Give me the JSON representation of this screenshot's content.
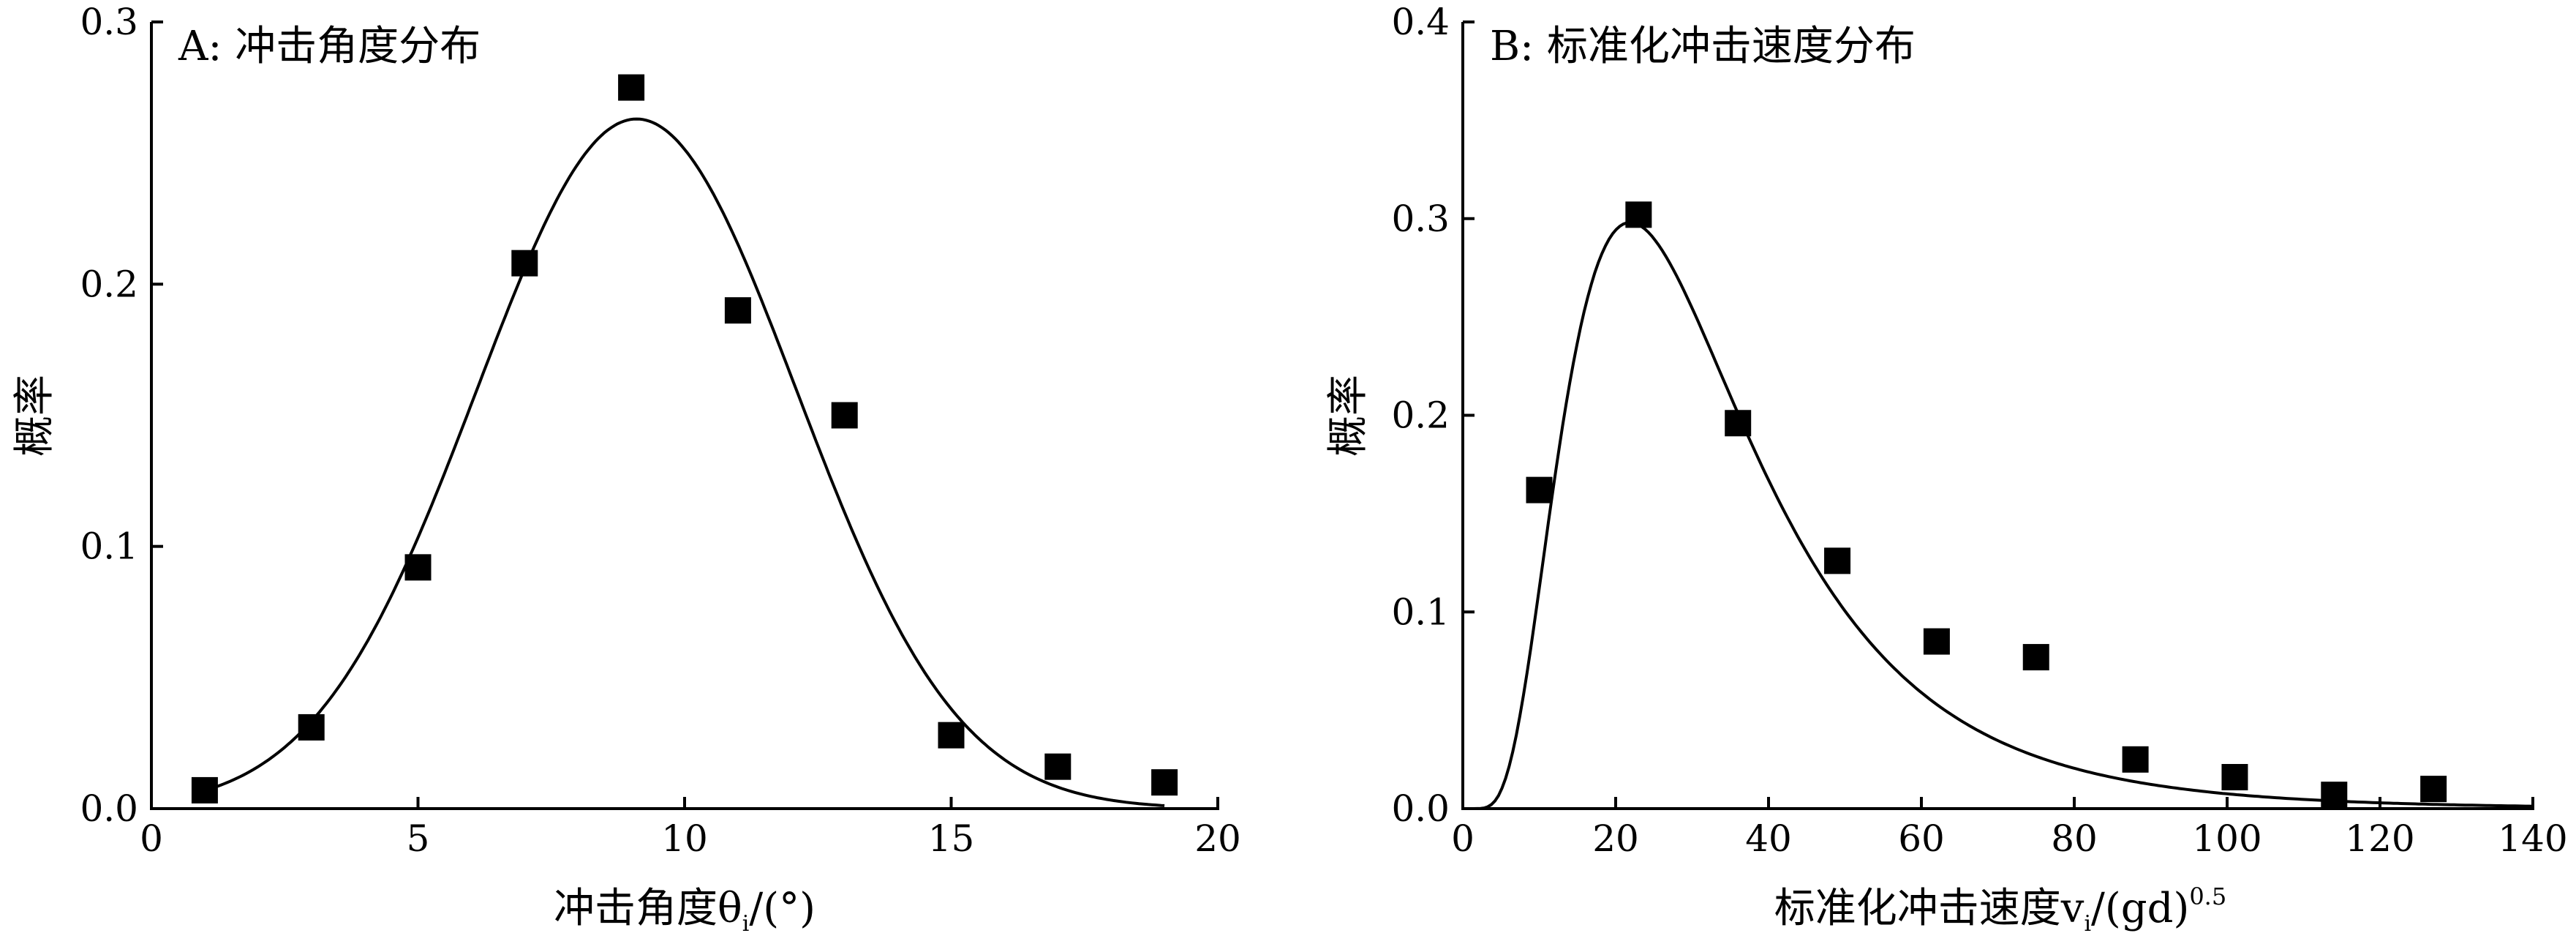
{
  "chart_data": [
    {
      "type": "scatter",
      "title": "A: 冲击角度分布",
      "xlabel": "冲击角度θ",
      "xlabel_sub": "i",
      "xlabel_tail": "/(°)",
      "ylabel": "概率",
      "xlim": [
        0,
        20
      ],
      "ylim": [
        0,
        0.3
      ],
      "xticks": [
        0,
        5,
        10,
        15,
        20
      ],
      "xtick_labels": [
        "0",
        "5",
        "10",
        "15",
        "20"
      ],
      "yticks": [
        0,
        0.1,
        0.2,
        0.3
      ],
      "ytick_labels": [
        "0.0",
        "0.1",
        "0.2",
        "0.3"
      ],
      "grid": false,
      "series": [
        {
          "marker": "square",
          "color": "#000000",
          "x": [
            1,
            3,
            5,
            7,
            9,
            11,
            13,
            15,
            17,
            19
          ],
          "y": [
            0.007,
            0.031,
            0.092,
            0.208,
            0.275,
            0.19,
            0.15,
            0.028,
            0.016,
            0.01
          ]
        }
      ],
      "fit": {
        "kind": "gaussian",
        "amplitude": 0.263,
        "mean": 9.1,
        "sigma": 3.0,
        "x_range": [
          1,
          19
        ],
        "color": "#000000"
      }
    },
    {
      "type": "scatter",
      "title": "B: 标准化冲击速度分布",
      "xlabel": "标准化冲击速度v",
      "xlabel_sub": "i",
      "xlabel_tail": "/(gd)",
      "xlabel_sup": "0.5",
      "ylabel": "概率",
      "xlim": [
        0,
        140
      ],
      "ylim": [
        0,
        0.4
      ],
      "xticks": [
        0,
        20,
        40,
        60,
        80,
        100,
        120,
        140
      ],
      "xtick_labels": [
        "0",
        "20",
        "40",
        "60",
        "80",
        "100",
        "120",
        "140"
      ],
      "yticks": [
        0,
        0.1,
        0.2,
        0.3,
        0.4
      ],
      "ytick_labels": [
        "0.0",
        "0.1",
        "0.2",
        "0.3",
        "0.4"
      ],
      "grid": false,
      "series": [
        {
          "marker": "square",
          "color": "#000000",
          "x": [
            10,
            23,
            36,
            49,
            62,
            75,
            88,
            101,
            114,
            127
          ],
          "y": [
            0.162,
            0.302,
            0.196,
            0.126,
            0.085,
            0.077,
            0.025,
            0.016,
            0.007,
            0.01
          ]
        }
      ],
      "fit": {
        "kind": "lognormal",
        "peak_x": 20.5,
        "peak_y": 0.296,
        "mu": 3.4,
        "sigma": 0.56,
        "x_range": [
          0,
          140
        ],
        "color": "#000000"
      }
    }
  ]
}
